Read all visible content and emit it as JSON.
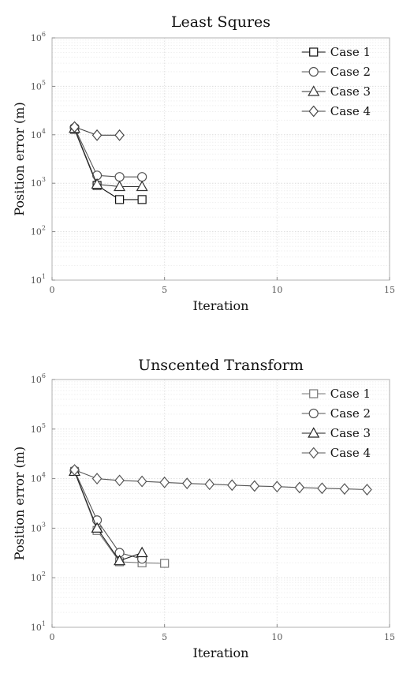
{
  "chart_data": [
    {
      "type": "line",
      "title": "Least Squres",
      "xlabel": "Iteration",
      "ylabel": "Position error (m)",
      "xlim": [
        0,
        15
      ],
      "ylim": [
        10,
        1000000
      ],
      "yscale": "log",
      "grid": true,
      "legend_position": "top-right",
      "xticks": [
        "0",
        "5",
        "10",
        "15"
      ],
      "yticks": [
        {
          "base": "10",
          "exp": "1"
        },
        {
          "base": "10",
          "exp": "2"
        },
        {
          "base": "10",
          "exp": "3"
        },
        {
          "base": "10",
          "exp": "4"
        },
        {
          "base": "10",
          "exp": "5"
        },
        {
          "base": "10",
          "exp": "6"
        }
      ],
      "series": [
        {
          "name": "Case 1",
          "marker": "square",
          "color": "#111111",
          "x": [
            1,
            2,
            3,
            4
          ],
          "y": [
            13000,
            900,
            460,
            460
          ]
        },
        {
          "name": "Case 2",
          "marker": "circle",
          "color": "#555555",
          "x": [
            1,
            2,
            3,
            4
          ],
          "y": [
            14000,
            1450,
            1350,
            1350
          ]
        },
        {
          "name": "Case 3",
          "marker": "triangle",
          "color": "#333333",
          "x": [
            1,
            2,
            3,
            4
          ],
          "y": [
            13500,
            950,
            850,
            850
          ]
        },
        {
          "name": "Case 4",
          "marker": "diamond",
          "color": "#444444",
          "x": [
            1,
            2,
            3
          ],
          "y": [
            14500,
            9800,
            9800
          ]
        }
      ]
    },
    {
      "type": "line",
      "title": "Unscented Transform",
      "xlabel": "Iteration",
      "ylabel": "Position error (m)",
      "xlim": [
        0,
        15
      ],
      "ylim": [
        10,
        1000000
      ],
      "yscale": "log",
      "grid": true,
      "legend_position": "top-right",
      "xticks": [
        "0",
        "5",
        "10",
        "15"
      ],
      "yticks": [
        {
          "base": "10",
          "exp": "1"
        },
        {
          "base": "10",
          "exp": "2"
        },
        {
          "base": "10",
          "exp": "3"
        },
        {
          "base": "10",
          "exp": "4"
        },
        {
          "base": "10",
          "exp": "5"
        },
        {
          "base": "10",
          "exp": "6"
        }
      ],
      "series": [
        {
          "name": "Case 1",
          "marker": "square",
          "color": "#777777",
          "x": [
            1,
            2,
            3,
            4,
            5
          ],
          "y": [
            14000,
            900,
            210,
            200,
            195
          ]
        },
        {
          "name": "Case 2",
          "marker": "circle",
          "color": "#555555",
          "x": [
            1,
            2,
            3,
            4
          ],
          "y": [
            14500,
            1450,
            320,
            240
          ]
        },
        {
          "name": "Case 3",
          "marker": "triangle",
          "color": "#222222",
          "x": [
            1,
            2,
            3,
            4
          ],
          "y": [
            14000,
            1000,
            220,
            320
          ]
        },
        {
          "name": "Case 4",
          "marker": "diamond",
          "color": "#555555",
          "x": [
            1,
            2,
            3,
            4,
            5,
            6,
            7,
            8,
            9,
            10,
            11,
            12,
            13,
            14
          ],
          "y": [
            15000,
            10000,
            9200,
            8800,
            8400,
            8000,
            7700,
            7400,
            7100,
            6900,
            6600,
            6400,
            6200,
            6000
          ]
        }
      ]
    }
  ]
}
